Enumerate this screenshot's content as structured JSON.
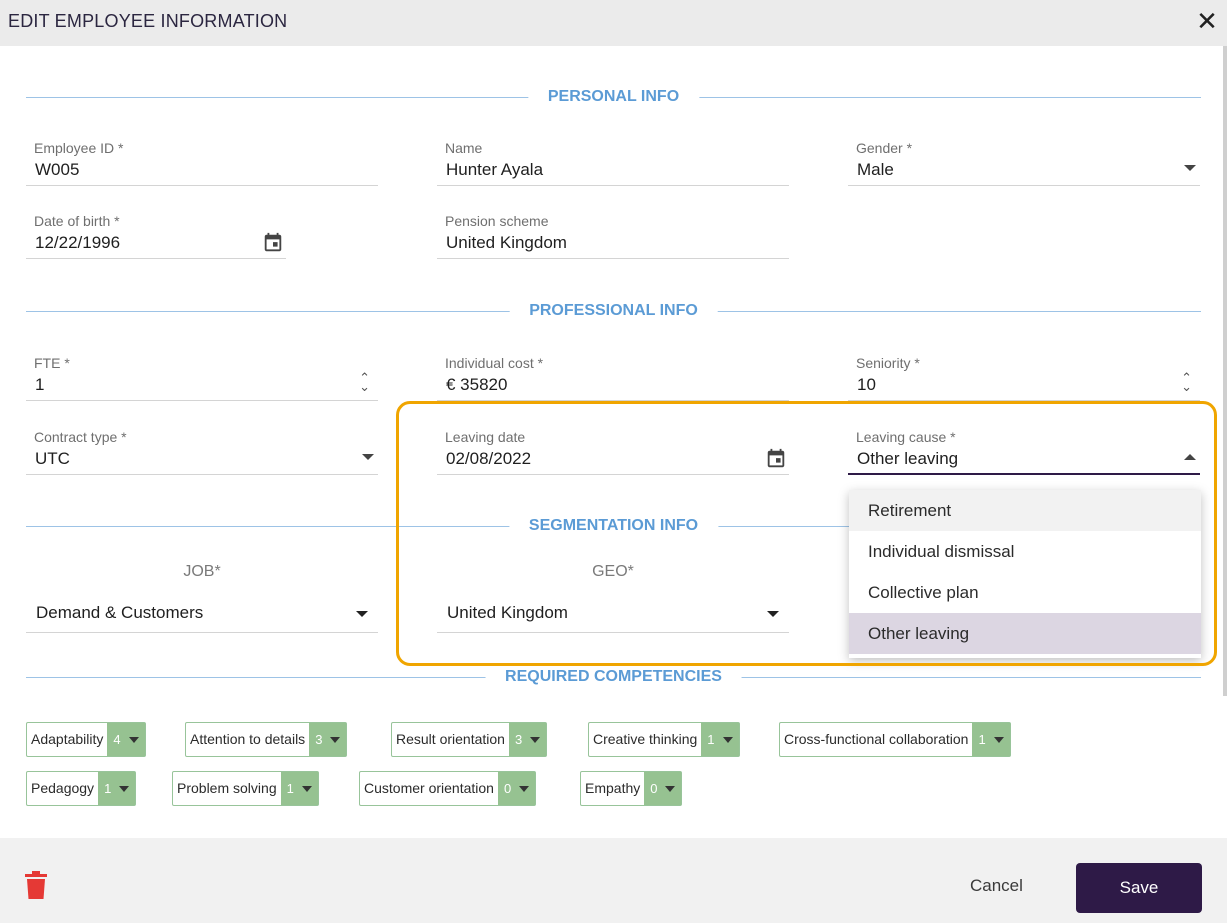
{
  "header": {
    "title": "EDIT EMPLOYEE INFORMATION",
    "close_icon": "✕"
  },
  "sections": {
    "personal": "PERSONAL INFO",
    "professional": "PROFESSIONAL INFO",
    "segmentation": "SEGMENTATION INFO",
    "competencies": "REQUIRED COMPETENCIES"
  },
  "personal": {
    "employee_id": {
      "label": "Employee ID *",
      "value": "W005"
    },
    "name": {
      "label": "Name",
      "value": "Hunter Ayala"
    },
    "gender": {
      "label": "Gender *",
      "value": "Male"
    },
    "dob": {
      "label": "Date of birth *",
      "value": "12/22/1996"
    },
    "pension": {
      "label": "Pension scheme",
      "value": "United Kingdom"
    }
  },
  "professional": {
    "fte": {
      "label": "FTE *",
      "value": "1"
    },
    "cost": {
      "label": "Individual cost *",
      "value": "€ 35820"
    },
    "seniority": {
      "label": "Seniority *",
      "value": "10"
    },
    "contract": {
      "label": "Contract type *",
      "value": "UTC"
    },
    "leaving_date": {
      "label": "Leaving date",
      "value": "02/08/2022"
    },
    "leaving_cause": {
      "label": "Leaving cause *",
      "value": "Other leaving",
      "options": [
        "Retirement",
        "Individual dismissal",
        "Collective plan",
        "Other leaving"
      ]
    }
  },
  "segmentation": {
    "job": {
      "label": "JOB*",
      "value": "Demand & Customers"
    },
    "geo": {
      "label": "GEO*",
      "value": "United Kingdom"
    }
  },
  "competencies": [
    {
      "name": "Adaptability",
      "level": "4"
    },
    {
      "name": "Attention to details",
      "level": "3"
    },
    {
      "name": "Result orientation",
      "level": "3"
    },
    {
      "name": "Creative thinking",
      "level": "1"
    },
    {
      "name": "Cross-functional collaboration",
      "level": "1"
    },
    {
      "name": "Pedagogy",
      "level": "1"
    },
    {
      "name": "Problem solving",
      "level": "1"
    },
    {
      "name": "Customer orientation",
      "level": "0"
    },
    {
      "name": "Empathy",
      "level": "0"
    }
  ],
  "footer": {
    "cancel_label": "Cancel",
    "save_label": "Save"
  },
  "colors": {
    "accent": "#5b9bd5",
    "primary": "#2e1a47",
    "chip": "#96c291",
    "highlight": "#f0a500",
    "delete": "#e53935"
  }
}
